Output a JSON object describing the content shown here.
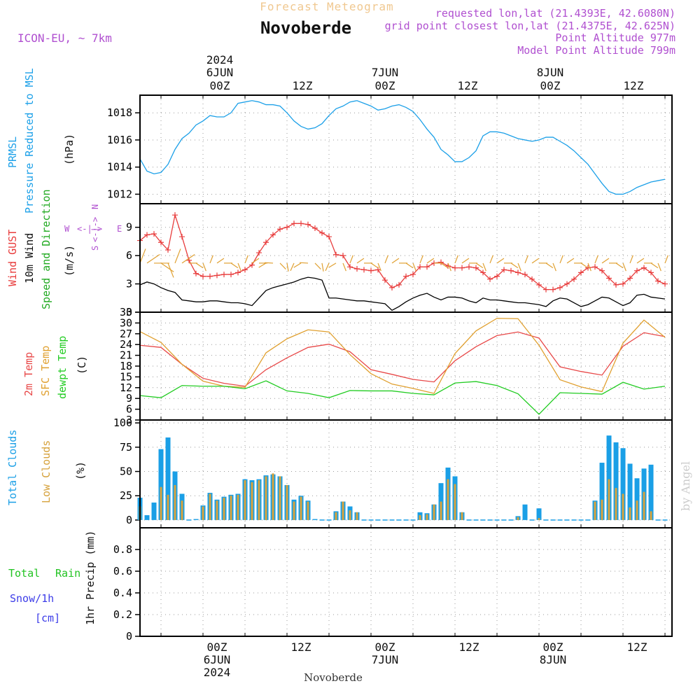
{
  "header": {
    "title": "Forecast Meteogram",
    "location": "Novoberde",
    "model": "ICON-EU, ~ 7km",
    "requested": "requested lon,lat (21.4393E, 42.6080N)",
    "grid_point": "grid point closest lon,lat (21.4375E, 42.625N)",
    "point_altitude": "Point Altitude 977m",
    "model_altitude": "Model Point Altitude 799m",
    "watermark": "by Angel",
    "footer_location": "Novoberde"
  },
  "time_axis": {
    "top": {
      "year": "2024",
      "days": [
        "6JUN",
        "7JUN",
        "8JUN"
      ],
      "hours": [
        "00Z",
        "12Z",
        "00Z",
        "12Z",
        "00Z",
        "12Z"
      ]
    },
    "bottom": {
      "year": "2024",
      "days": [
        "6JUN",
        "7JUN",
        "8JUN"
      ],
      "hours": [
        "00Z",
        "12Z",
        "00Z",
        "12Z",
        "00Z",
        "12Z"
      ]
    }
  },
  "colors": {
    "pressure": "#1ca0e8",
    "gust": "#e83c3c",
    "wind": "#000000",
    "t2m": "#e84848",
    "sfc": "#e0a030",
    "dewpt": "#22cc22",
    "total_clouds": "#1a9fe6",
    "low_clouds": "#d6a23c",
    "rain": "#22c322",
    "snow": "#3c3ce8",
    "label": "#b050d0"
  },
  "panels": {
    "pressure": {
      "labels": [
        "PRMSL",
        "Pressure Reduced to MSL"
      ],
      "unit": "(hPa)"
    },
    "wind": {
      "labels": [
        "Wind GUST",
        "10m Wind",
        "Speed and Direction"
      ],
      "unit": "(m/s)",
      "compass": {
        "n": "N",
        "s": "S",
        "w": "W",
        "e": "E"
      }
    },
    "temp": {
      "labels": [
        "2m Temp",
        "SFC Temp",
        "dewpt Temp"
      ],
      "unit": "(C)"
    },
    "clouds": {
      "labels": [
        "Total Clouds",
        "Low Clouds"
      ],
      "unit": "(%)"
    },
    "precip": {
      "labels": [
        "Total",
        "Rain",
        "Snow/1h",
        "[cm]"
      ],
      "unit": "1hr Precip (mm)"
    }
  },
  "chart_data": [
    {
      "type": "line",
      "title": "PRMSL Pressure Reduced to MSL",
      "ylabel": "hPa",
      "ylim": [
        1011.3,
        1019.3
      ],
      "yticks": [
        1012,
        1014,
        1016,
        1018
      ],
      "x_hours": [
        -9,
        -8,
        -7,
        -6,
        -5,
        -4,
        -3,
        -2,
        -1,
        0,
        1,
        2,
        3,
        4,
        5,
        6,
        7,
        8,
        9,
        10,
        11,
        12,
        13,
        14,
        15,
        16,
        17,
        18,
        19,
        20,
        21,
        22,
        23,
        24,
        25,
        26,
        27,
        28,
        29,
        30,
        31,
        32,
        33,
        34,
        35,
        36,
        37,
        38,
        39,
        40,
        41,
        42,
        43,
        44,
        45,
        46,
        47,
        48,
        49,
        50,
        51,
        52,
        53,
        54,
        55,
        56,
        57,
        58,
        59,
        60,
        61,
        62,
        63,
        64,
        65,
        66
      ],
      "series": [
        {
          "name": "PRMSL",
          "values": [
            1014.6,
            1013.7,
            1013.5,
            1013.6,
            1014.2,
            1015.3,
            1016.1,
            1016.5,
            1017.1,
            1017.4,
            1017.8,
            1017.7,
            1017.7,
            1018.0,
            1018.7,
            1018.8,
            1018.9,
            1018.8,
            1018.6,
            1018.6,
            1018.5,
            1018.0,
            1017.4,
            1017.0,
            1016.8,
            1016.9,
            1017.2,
            1017.8,
            1018.3,
            1018.5,
            1018.8,
            1018.9,
            1018.7,
            1018.5,
            1018.2,
            1018.3,
            1018.5,
            1018.6,
            1018.4,
            1018.1,
            1017.5,
            1016.8,
            1016.2,
            1015.3,
            1014.9,
            1014.4,
            1014.4,
            1014.7,
            1015.2,
            1016.3,
            1016.6,
            1016.6,
            1016.5,
            1016.3,
            1016.1,
            1016.0,
            1015.9,
            1016.0,
            1016.2,
            1016.2,
            1015.9,
            1015.6,
            1015.2,
            1014.7,
            1014.2,
            1013.5,
            1012.8,
            1012.2,
            1012.0,
            1012.0,
            1012.2,
            1012.5,
            1012.7,
            1012.9,
            1013.0,
            1013.1
          ]
        }
      ]
    },
    {
      "type": "line",
      "title": "Wind GUST / 10m Wind Speed and Direction",
      "ylabel": "m/s",
      "ylim": [
        0,
        11.5
      ],
      "yticks": [
        0,
        3,
        6,
        9
      ],
      "x_hours": [
        -9,
        -8,
        -7,
        -6,
        -5,
        -4,
        -3,
        -2,
        -1,
        0,
        1,
        2,
        3,
        4,
        5,
        6,
        7,
        8,
        9,
        10,
        11,
        12,
        13,
        14,
        15,
        16,
        17,
        18,
        19,
        20,
        21,
        22,
        23,
        24,
        25,
        26,
        27,
        28,
        29,
        30,
        31,
        32,
        33,
        34,
        35,
        36,
        37,
        38,
        39,
        40,
        41,
        42,
        43,
        44,
        45,
        46,
        47,
        48,
        49,
        50,
        51,
        52,
        53,
        54,
        55,
        56,
        57,
        58,
        59,
        60,
        61,
        62,
        63,
        64,
        65,
        66
      ],
      "series": [
        {
          "name": "Wind GUST",
          "values": [
            7.6,
            8.2,
            8.3,
            7.4,
            6.6,
            10.3,
            8.0,
            5.5,
            4.1,
            3.8,
            3.8,
            3.9,
            4.0,
            4.0,
            4.2,
            4.5,
            5.0,
            6.3,
            7.4,
            8.2,
            8.8,
            9.0,
            9.4,
            9.4,
            9.3,
            8.9,
            8.4,
            8.0,
            6.1,
            6.0,
            4.8,
            4.6,
            4.5,
            4.4,
            4.5,
            3.4,
            2.6,
            2.9,
            3.8,
            4.0,
            4.8,
            4.8,
            5.2,
            5.3,
            4.9,
            4.7,
            4.7,
            4.8,
            4.7,
            4.2,
            3.5,
            3.8,
            4.5,
            4.4,
            4.2,
            4.0,
            3.5,
            2.9,
            2.4,
            2.4,
            2.6,
            3.0,
            3.5,
            4.2,
            4.7,
            4.8,
            4.4,
            3.6,
            2.9,
            3.0,
            3.6,
            4.4,
            4.7,
            4.2,
            3.3,
            3.0
          ]
        },
        {
          "name": "10m Wind",
          "values": [
            2.9,
            3.2,
            3.0,
            2.6,
            2.3,
            2.1,
            1.3,
            1.2,
            1.1,
            1.1,
            1.2,
            1.2,
            1.1,
            1.0,
            1.0,
            0.9,
            0.7,
            1.5,
            2.3,
            2.6,
            2.8,
            3.0,
            3.2,
            3.5,
            3.7,
            3.6,
            3.4,
            1.5,
            1.5,
            1.4,
            1.3,
            1.2,
            1.2,
            1.1,
            1.0,
            0.9,
            0.2,
            0.6,
            1.1,
            1.5,
            1.8,
            2.0,
            1.6,
            1.3,
            1.6,
            1.6,
            1.5,
            1.2,
            1.0,
            1.5,
            1.3,
            1.3,
            1.2,
            1.1,
            1.0,
            1.0,
            0.9,
            0.8,
            0.6,
            1.2,
            1.5,
            1.4,
            1.0,
            0.6,
            0.8,
            1.2,
            1.6,
            1.5,
            1.1,
            0.7,
            1.0,
            1.8,
            1.9,
            1.6,
            1.5,
            1.4
          ]
        }
      ]
    },
    {
      "type": "line",
      "title": "2m Temp / SFC Temp / dewpt Temp",
      "ylabel": "C",
      "ylim": [
        3,
        33
      ],
      "yticks": [
        3,
        6,
        9,
        12,
        15,
        18,
        21,
        24,
        27,
        30,
        33
      ],
      "x_hours": [
        -9,
        -6,
        -3,
        0,
        3,
        6,
        9,
        12,
        15,
        18,
        21,
        24,
        27,
        30,
        33,
        36,
        39,
        42,
        45,
        48,
        51,
        54,
        57,
        60,
        63,
        66
      ],
      "series": [
        {
          "name": "2m Temp",
          "values": [
            23.8,
            23.2,
            18.5,
            14.6,
            13.2,
            12.4,
            17.0,
            20.3,
            23.2,
            24.1,
            22.0,
            17.0,
            15.7,
            14.3,
            13.6,
            19.5,
            23.4,
            26.5,
            27.5,
            25.8,
            17.8,
            16.5,
            15.5,
            23.5,
            27.3,
            26.2
          ]
        },
        {
          "name": "SFC Temp",
          "values": [
            27.6,
            24.6,
            18.5,
            13.8,
            12.4,
            12.1,
            21.7,
            25.6,
            28.1,
            27.5,
            21.2,
            15.9,
            13.0,
            11.8,
            10.4,
            21.5,
            27.8,
            31.3,
            31.2,
            23.8,
            14.2,
            12.2,
            10.9,
            24.4,
            30.8,
            26.0
          ]
        },
        {
          "name": "dewpt Temp",
          "values": [
            9.8,
            9.2,
            12.6,
            12.4,
            12.4,
            11.7,
            13.9,
            11.1,
            10.4,
            9.2,
            11.2,
            11.1,
            11.1,
            10.4,
            10.0,
            13.3,
            13.7,
            12.6,
            10.3,
            4.6,
            10.6,
            10.4,
            10.2,
            13.5,
            11.6,
            12.4
          ]
        }
      ]
    },
    {
      "type": "bar",
      "title": "Total Clouds / Low Clouds",
      "ylabel": "%",
      "ylim": [
        -8,
        103
      ],
      "yticks": [
        0,
        25,
        50,
        75,
        100
      ],
      "x_hours": [
        -9,
        -8,
        -7,
        -6,
        -5,
        -4,
        -3,
        -2,
        -1,
        0,
        1,
        2,
        3,
        4,
        5,
        6,
        7,
        8,
        9,
        10,
        11,
        12,
        13,
        14,
        15,
        16,
        17,
        18,
        19,
        20,
        21,
        22,
        23,
        24,
        25,
        26,
        27,
        28,
        29,
        30,
        31,
        32,
        33,
        34,
        35,
        36,
        37,
        38,
        39,
        40,
        41,
        42,
        43,
        44,
        45,
        46,
        47,
        48,
        49,
        50,
        51,
        52,
        53,
        54,
        55,
        56,
        57,
        58,
        59,
        60,
        61,
        62,
        63,
        64,
        65,
        66
      ],
      "series": [
        {
          "name": "Total Clouds",
          "values": [
            23,
            5,
            18,
            73,
            85,
            50,
            27,
            0,
            1,
            15,
            28,
            21,
            24,
            26,
            27,
            42,
            41,
            42,
            46,
            47,
            45,
            36,
            21,
            25,
            20,
            1,
            0,
            0,
            9,
            19,
            14,
            8,
            0,
            0,
            0,
            0,
            0,
            0,
            0,
            0,
            8,
            7,
            16,
            38,
            54,
            45,
            8,
            0,
            0,
            0,
            0,
            0,
            0,
            0,
            4,
            16,
            0,
            12,
            0,
            0,
            0,
            0,
            0,
            0,
            0,
            20,
            59,
            87,
            80,
            74,
            58,
            43,
            53,
            57,
            0,
            0
          ]
        },
        {
          "name": "Low Clouds",
          "values": [
            14,
            0,
            0,
            34,
            26,
            36,
            20,
            0,
            0,
            14,
            27,
            20,
            23,
            25,
            26,
            41,
            39,
            41,
            45,
            48,
            45,
            36,
            19,
            24,
            19,
            0,
            0,
            0,
            8,
            19,
            10,
            8,
            0,
            0,
            0,
            0,
            0,
            0,
            0,
            0,
            5,
            6,
            16,
            19,
            42,
            37,
            8,
            0,
            0,
            0,
            0,
            0,
            0,
            0,
            3,
            0,
            0,
            2,
            0,
            0,
            0,
            0,
            0,
            0,
            0,
            19,
            21,
            42,
            33,
            27,
            13,
            20,
            29,
            9,
            0,
            0
          ]
        }
      ]
    },
    {
      "type": "bar",
      "title": "1hr Precip",
      "ylabel": "1hr Precip (mm)",
      "ylim": [
        0,
        1.0
      ],
      "yticks": [
        0,
        0.2,
        0.4,
        0.6,
        0.8
      ],
      "series": [
        {
          "name": "Total Rain",
          "values": []
        },
        {
          "name": "Snow/1h",
          "values": []
        }
      ]
    }
  ]
}
